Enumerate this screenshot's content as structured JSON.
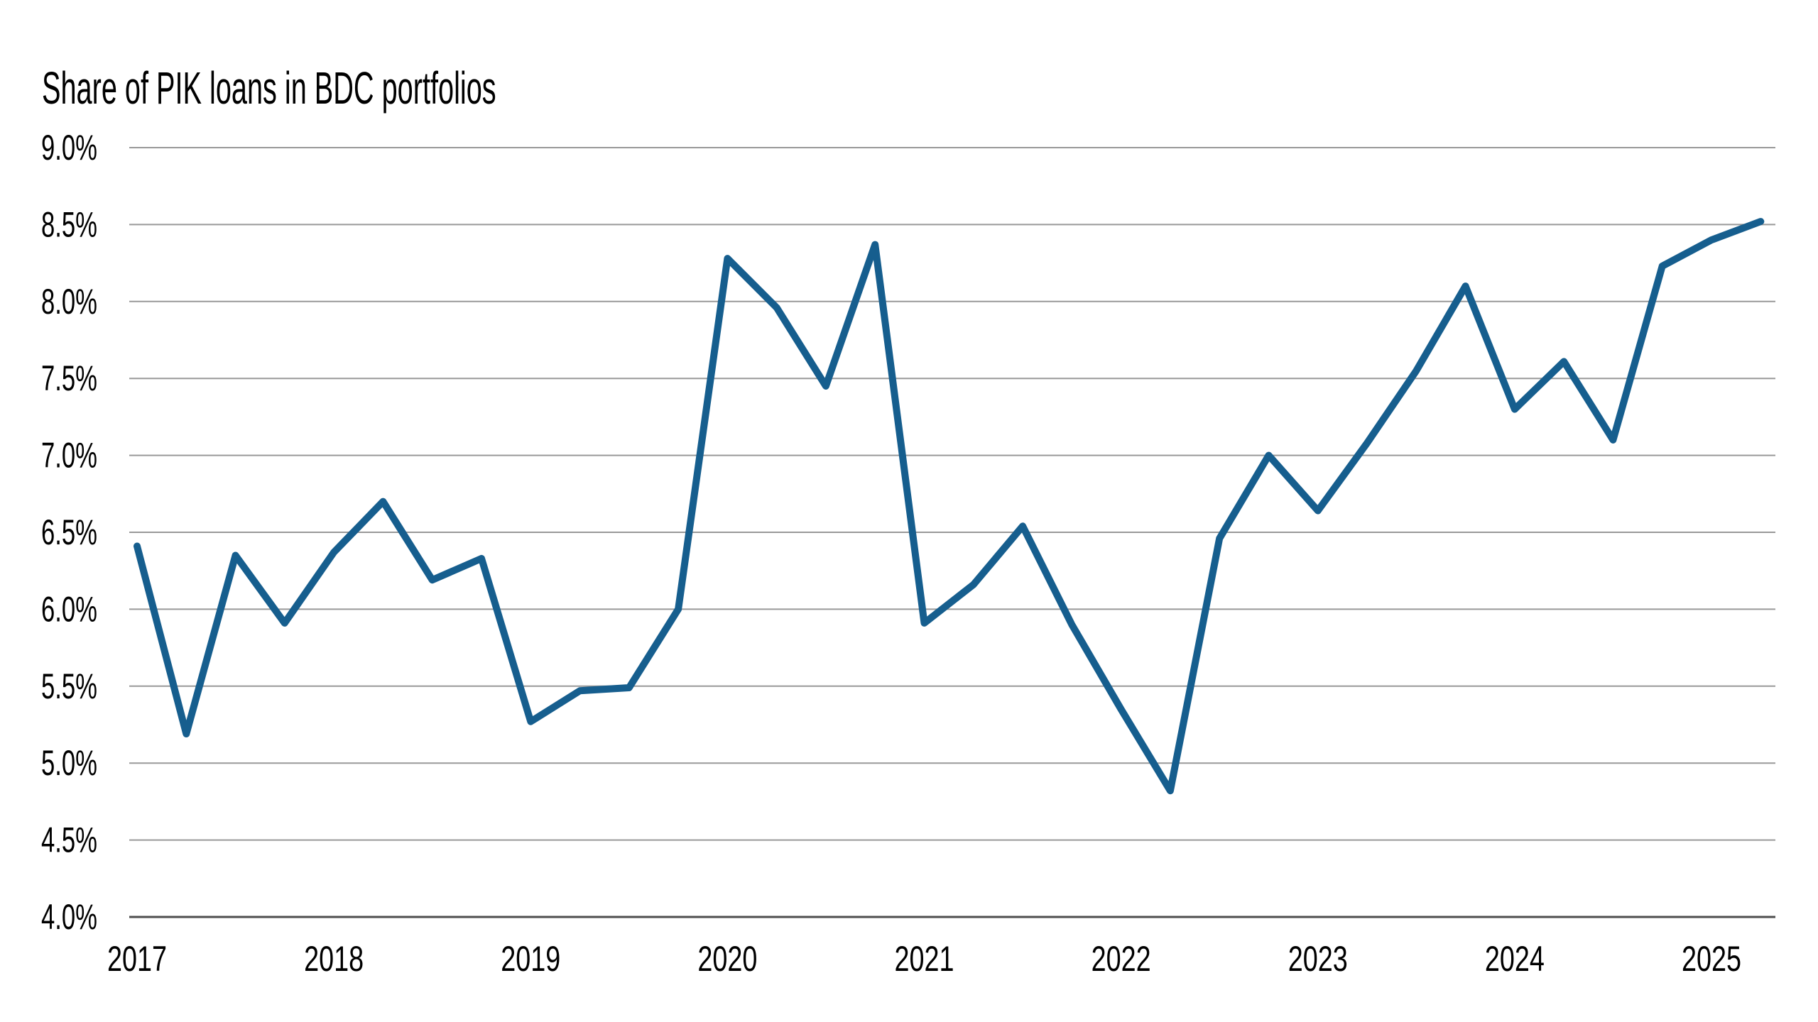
{
  "chart_data": {
    "type": "line",
    "title": "Share of PIK loans in BDC portfolios",
    "subtitle": "",
    "xlabel": "",
    "ylabel": "",
    "frequency": "quarterly",
    "unit": "%",
    "ylim": [
      4.0,
      9.0
    ],
    "xlim": [
      2017.0,
      2025.25
    ],
    "grid": "horizontal",
    "legend": "none",
    "series": [
      {
        "name": "Share of PIK loans in BDC portfolios",
        "periods": [
          "2017Q1",
          "2017Q2",
          "2017Q3",
          "2017Q4",
          "2018Q1",
          "2018Q2",
          "2018Q3",
          "2018Q4",
          "2019Q1",
          "2019Q2",
          "2019Q3",
          "2019Q4",
          "2020Q1",
          "2020Q2",
          "2020Q3",
          "2020Q4",
          "2021Q1",
          "2021Q2",
          "2021Q3",
          "2021Q4",
          "2022Q1",
          "2022Q2",
          "2022Q3",
          "2022Q4",
          "2023Q1",
          "2023Q2",
          "2023Q3",
          "2023Q4",
          "2024Q1",
          "2024Q2",
          "2024Q3",
          "2024Q4",
          "2025Q1",
          "2025Q2"
        ],
        "x": [
          2017.0,
          2017.25,
          2017.5,
          2017.75,
          2018.0,
          2018.25,
          2018.5,
          2018.75,
          2019.0,
          2019.25,
          2019.5,
          2019.75,
          2020.0,
          2020.25,
          2020.5,
          2020.75,
          2021.0,
          2021.25,
          2021.5,
          2021.75,
          2022.0,
          2022.25,
          2022.5,
          2022.75,
          2023.0,
          2023.25,
          2023.5,
          2023.75,
          2024.0,
          2024.25,
          2024.5,
          2024.75,
          2025.0,
          2025.25
        ],
        "values": [
          6.41,
          5.19,
          6.35,
          5.91,
          6.37,
          6.7,
          6.19,
          6.33,
          5.27,
          5.47,
          5.49,
          6.0,
          8.28,
          7.96,
          7.45,
          8.37,
          5.91,
          6.16,
          6.54,
          5.9,
          5.35,
          4.82,
          6.46,
          7.0,
          6.64,
          7.08,
          7.55,
          8.1,
          7.3,
          7.61,
          7.1,
          8.23,
          8.4,
          8.52
        ]
      }
    ],
    "y_ticks": [
      {
        "value": 9.0,
        "label": "9.0%"
      },
      {
        "value": 8.5,
        "label": "8.5%"
      },
      {
        "value": 8.0,
        "label": "8.0%"
      },
      {
        "value": 7.5,
        "label": "7.5%"
      },
      {
        "value": 7.0,
        "label": "7.0%"
      },
      {
        "value": 6.5,
        "label": "6.5%"
      },
      {
        "value": 6.0,
        "label": "6.0%"
      },
      {
        "value": 5.5,
        "label": "5.5%"
      },
      {
        "value": 5.0,
        "label": "5.0%"
      },
      {
        "value": 4.5,
        "label": "4.5%"
      },
      {
        "value": 4.0,
        "label": "4.0%"
      }
    ],
    "x_ticks": [
      {
        "value": 2017,
        "label": "2017"
      },
      {
        "value": 2018,
        "label": "2018"
      },
      {
        "value": 2019,
        "label": "2019"
      },
      {
        "value": 2020,
        "label": "2020"
      },
      {
        "value": 2021,
        "label": "2021"
      },
      {
        "value": 2022,
        "label": "2022"
      },
      {
        "value": 2023,
        "label": "2023"
      },
      {
        "value": 2024,
        "label": "2024"
      },
      {
        "value": 2025,
        "label": "2025"
      }
    ],
    "colors": {
      "line": "#165E8E",
      "gridline": "#999999",
      "baseline_axis": "#4D4D4D",
      "text": "#000000",
      "background": "#FFFFFF"
    }
  }
}
